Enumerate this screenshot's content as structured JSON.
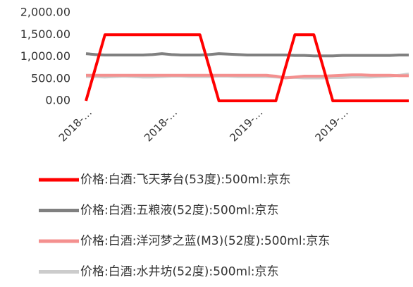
{
  "chart_data": {
    "type": "line",
    "categories": [
      "2018-…",
      null,
      null,
      null,
      null,
      null,
      null,
      null,
      null,
      "2018-…",
      null,
      null,
      null,
      null,
      null,
      null,
      null,
      null,
      "2019-…",
      null,
      null,
      null,
      null,
      null,
      null,
      null,
      null,
      "2019-…",
      null,
      null,
      null,
      null,
      null,
      null,
      null
    ],
    "series": [
      {
        "name": "价格:白酒:飞天茅台(53度):500ml:京东",
        "color": "#ff0000",
        "values": [
          0,
          750,
          1500,
          1500,
          1500,
          1500,
          1500,
          1500,
          1500,
          1500,
          1500,
          1500,
          1500,
          750,
          0,
          0,
          0,
          0,
          0,
          0,
          0,
          750,
          1500,
          1500,
          1500,
          750,
          0,
          0,
          0,
          0,
          0,
          0,
          0,
          0,
          0
        ]
      },
      {
        "name": "价格:白酒:五粮液(52度):500ml:京东",
        "color": "#808080",
        "values": [
          1070,
          1050,
          1040,
          1040,
          1040,
          1040,
          1040,
          1050,
          1070,
          1050,
          1040,
          1040,
          1040,
          1050,
          1070,
          1060,
          1050,
          1040,
          1040,
          1040,
          1040,
          1040,
          1030,
          1030,
          1020,
          1020,
          1020,
          1030,
          1030,
          1030,
          1030,
          1030,
          1030,
          1040,
          1040
        ]
      },
      {
        "name": "价格:白酒:洋河梦之蓝(M3)(52度):500ml:京东",
        "color": "#f4908f",
        "values": [
          580,
          580,
          580,
          580,
          580,
          580,
          580,
          580,
          580,
          580,
          580,
          580,
          580,
          580,
          580,
          580,
          580,
          580,
          580,
          580,
          560,
          520,
          540,
          560,
          560,
          560,
          570,
          580,
          590,
          590,
          580,
          580,
          580,
          570,
          570
        ]
      },
      {
        "name": "价格:白酒:水井坊(52度):500ml:京东",
        "color": "#cccccc",
        "values": [
          550,
          550,
          540,
          550,
          560,
          550,
          540,
          540,
          550,
          560,
          560,
          550,
          550,
          550,
          560,
          560,
          550,
          550,
          550,
          550,
          540,
          530,
          530,
          520,
          520,
          520,
          530,
          530,
          540,
          540,
          540,
          550,
          560,
          580,
          610
        ]
      }
    ],
    "ylim": [
      0,
      2000
    ],
    "yticks": [
      {
        "value": 0,
        "label": "0.00"
      },
      {
        "value": 500,
        "label": "500.00"
      },
      {
        "value": 1000,
        "label": "1,000.00"
      },
      {
        "value": 1500,
        "label": "1,500.00"
      },
      {
        "value": 2000,
        "label": "2,000.00"
      }
    ],
    "legend": "bottom"
  }
}
